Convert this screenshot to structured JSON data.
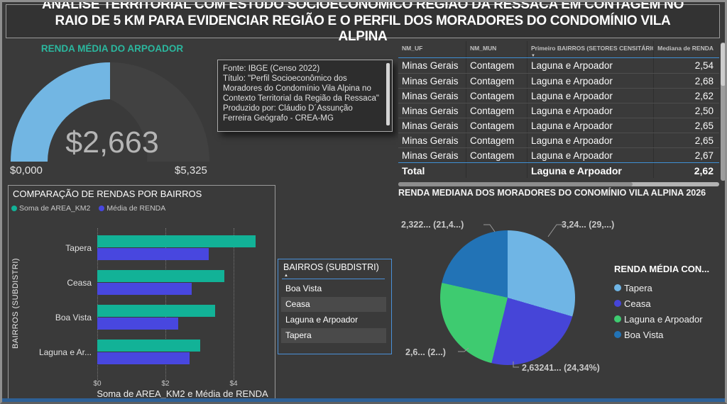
{
  "page": {
    "title": "ANÁLISE TERRITORIAL COM ESTUDO SOCIOECONÔMICO REGIÃO DA RESSACA EM CONTAGEM NO RAIO DE  5 KM PARA EVIDENCIAR REGIÃO E O PERFIL DOS MORADORES DO CONDOMÍNIO VILA ALPINA",
    "background": "#3a3a3a",
    "accent_blue": "#4a90d9"
  },
  "source_box": {
    "lines": [
      "Fonte: IBGE (Censo 2022)",
      "Título: \"Perfil Socioeconômico dos Moradores do Condomínio Vila Alpina no Contexto Territorial da Região da Ressaca\"",
      "Produzido por: Cláudio D´Assunção Ferreira Geógrafo - CREA-MG"
    ]
  },
  "table_caption": "RENDA MEDIANA DOS MORADORES DO CONOMÍNIO VILA ALPINA 2026",
  "slicer": {
    "title": "BAIRROS (SUBDISTRI)",
    "sort_icon": "▲",
    "items": [
      "Boa Vista",
      "Ceasa",
      "Laguna e Arpoador",
      "Tapera"
    ]
  },
  "chart_data": [
    {
      "type": "gauge",
      "title": "RENDA MÉDIA DO ARPOADOR",
      "title_color": "#2BB79E",
      "value": 2663,
      "min": 0,
      "max": 5325,
      "value_label": "$2,663",
      "min_label": "$0,000",
      "max_label": "$5,325",
      "fill_color": "#72B6E3"
    },
    {
      "type": "table",
      "columns": [
        "NM_UF",
        "NM_MUN",
        "Primeiro BAIRROS (SETORES CENSITÁRIOS)",
        "Mediana de RENDA"
      ],
      "sorted_column": "Primeiro BAIRROS (SETORES CENSITÁRIOS)",
      "rows": [
        [
          "Minas Gerais",
          "Contagem",
          "Laguna e Arpoador",
          "2,54"
        ],
        [
          "Minas Gerais",
          "Contagem",
          "Laguna e Arpoador",
          "2,68"
        ],
        [
          "Minas Gerais",
          "Contagem",
          "Laguna e Arpoador",
          "2,62"
        ],
        [
          "Minas Gerais",
          "Contagem",
          "Laguna e Arpoador",
          "2,50"
        ],
        [
          "Minas Gerais",
          "Contagem",
          "Laguna e Arpoador",
          "2,65"
        ],
        [
          "Minas Gerais",
          "Contagem",
          "Laguna e Arpoador",
          "2,65"
        ],
        [
          "Minas Gerais",
          "Contagem",
          "Laguna e Arpoador",
          "2,67"
        ]
      ],
      "total_row": [
        "Total",
        "",
        "Laguna e Arpoador",
        "2,62"
      ]
    },
    {
      "type": "bar",
      "orientation": "horizontal",
      "title": "COMPARAÇÃO DE RENDAS POR BAIRROS",
      "categories": [
        "Tapera",
        "Ceasa",
        "Boa Vista",
        "Laguna e Ar..."
      ],
      "series": [
        {
          "name": "Soma de AREA_KM2",
          "color": "#12B297",
          "values": [
            4.65,
            3.72,
            3.45,
            3.02
          ]
        },
        {
          "name": "Média de RENDA",
          "color": "#4847DF",
          "values": [
            3.27,
            2.78,
            2.38,
            2.71
          ]
        }
      ],
      "xlabel": "Soma de AREA_KM2 e Média de RENDA",
      "ylabel": "BAIRROS (SUBDISTRI)",
      "xticks": [
        "$0",
        "$2",
        "$4"
      ],
      "xtick_values": [
        0,
        2,
        4
      ],
      "xlim": [
        0,
        5.2
      ],
      "grid": "dotted-vertical"
    },
    {
      "type": "pie",
      "legend_title": "RENDA MÉDIA CON...",
      "legend_position": "right",
      "slices": [
        {
          "name": "Tapera",
          "label": "3,24... (29,...)",
          "percent": 29.5,
          "color": "#6FB5E5"
        },
        {
          "name": "Ceasa",
          "label": "2,63241... (24,34%)",
          "percent": 24.34,
          "color": "#4645D8"
        },
        {
          "name": "Laguna e Arpoador",
          "label": "2,6... (2...)",
          "percent": 24.7,
          "color": "#3ECB70"
        },
        {
          "name": "Boa Vista",
          "label": "2,322... (21,4...)",
          "percent": 21.46,
          "color": "#2273B6"
        }
      ]
    }
  ]
}
